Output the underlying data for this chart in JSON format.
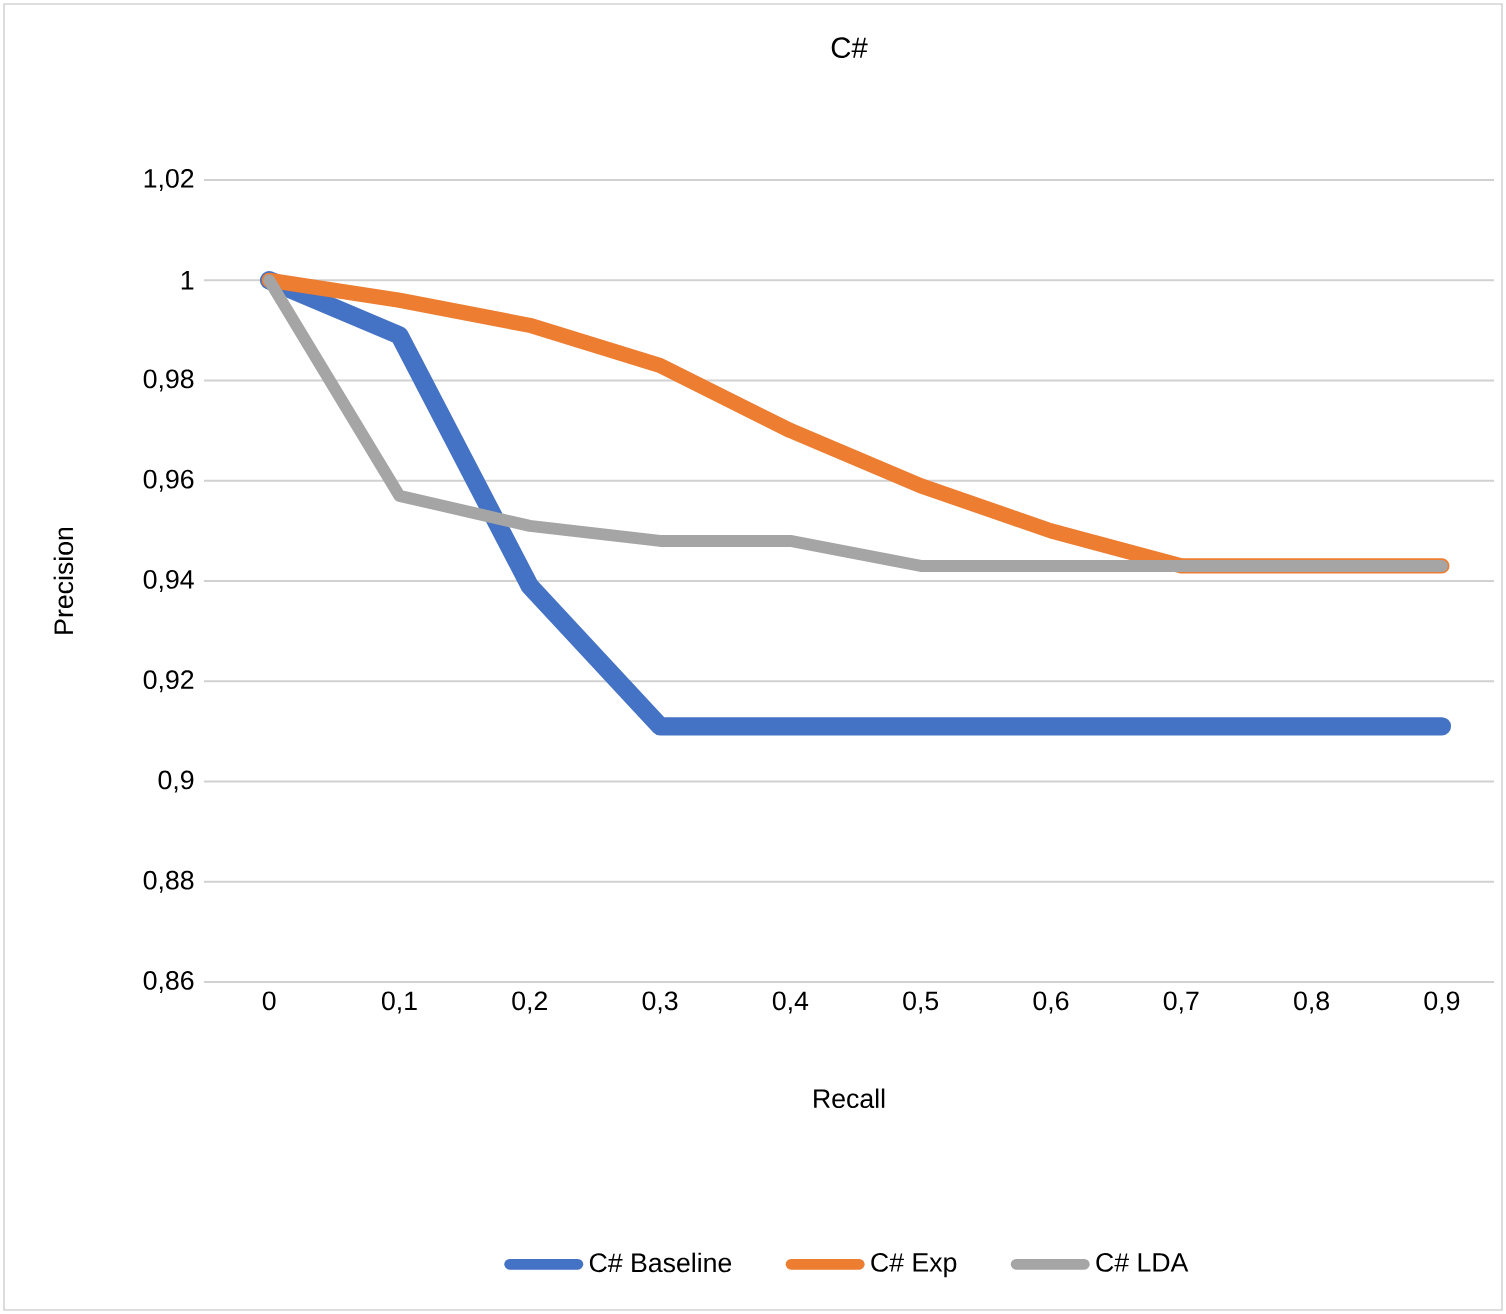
{
  "chart_data": {
    "type": "line",
    "title": "C#",
    "xlabel": "Recall",
    "ylabel": "Precision",
    "categories": [
      "0",
      "0,1",
      "0,2",
      "0,3",
      "0,4",
      "0,5",
      "0,6",
      "0,7",
      "0,8",
      "0,9"
    ],
    "series": [
      {
        "name": "C# Baseline",
        "color": "#4472c4",
        "values": [
          1.0,
          0.989,
          0.939,
          0.911,
          0.911,
          0.911,
          0.911,
          0.911,
          0.911,
          0.911
        ]
      },
      {
        "name": "C# Exp",
        "color": "#ed7d31",
        "values": [
          1.0,
          0.996,
          0.991,
          0.983,
          0.97,
          0.959,
          0.95,
          0.943,
          0.943,
          0.943
        ]
      },
      {
        "name": "C# LDA",
        "color": "#a5a5a5",
        "values": [
          1.0,
          0.957,
          0.951,
          0.948,
          0.948,
          0.943,
          0.943,
          0.943,
          0.943,
          0.943
        ]
      }
    ],
    "ylim": [
      0.86,
      1.02
    ],
    "yticks": [
      {
        "value": 0.86,
        "label": "0,86"
      },
      {
        "value": 0.88,
        "label": "0,88"
      },
      {
        "value": 0.9,
        "label": "0,9"
      },
      {
        "value": 0.92,
        "label": "0,92"
      },
      {
        "value": 0.94,
        "label": "0,94"
      },
      {
        "value": 0.96,
        "label": "0,96"
      },
      {
        "value": 0.98,
        "label": "0,98"
      },
      {
        "value": 1,
        "label": "1"
      },
      {
        "value": 1.02,
        "label": "1,02"
      }
    ],
    "grid": "y",
    "legend": "bottom",
    "marker": "none",
    "line_style": "solid"
  }
}
